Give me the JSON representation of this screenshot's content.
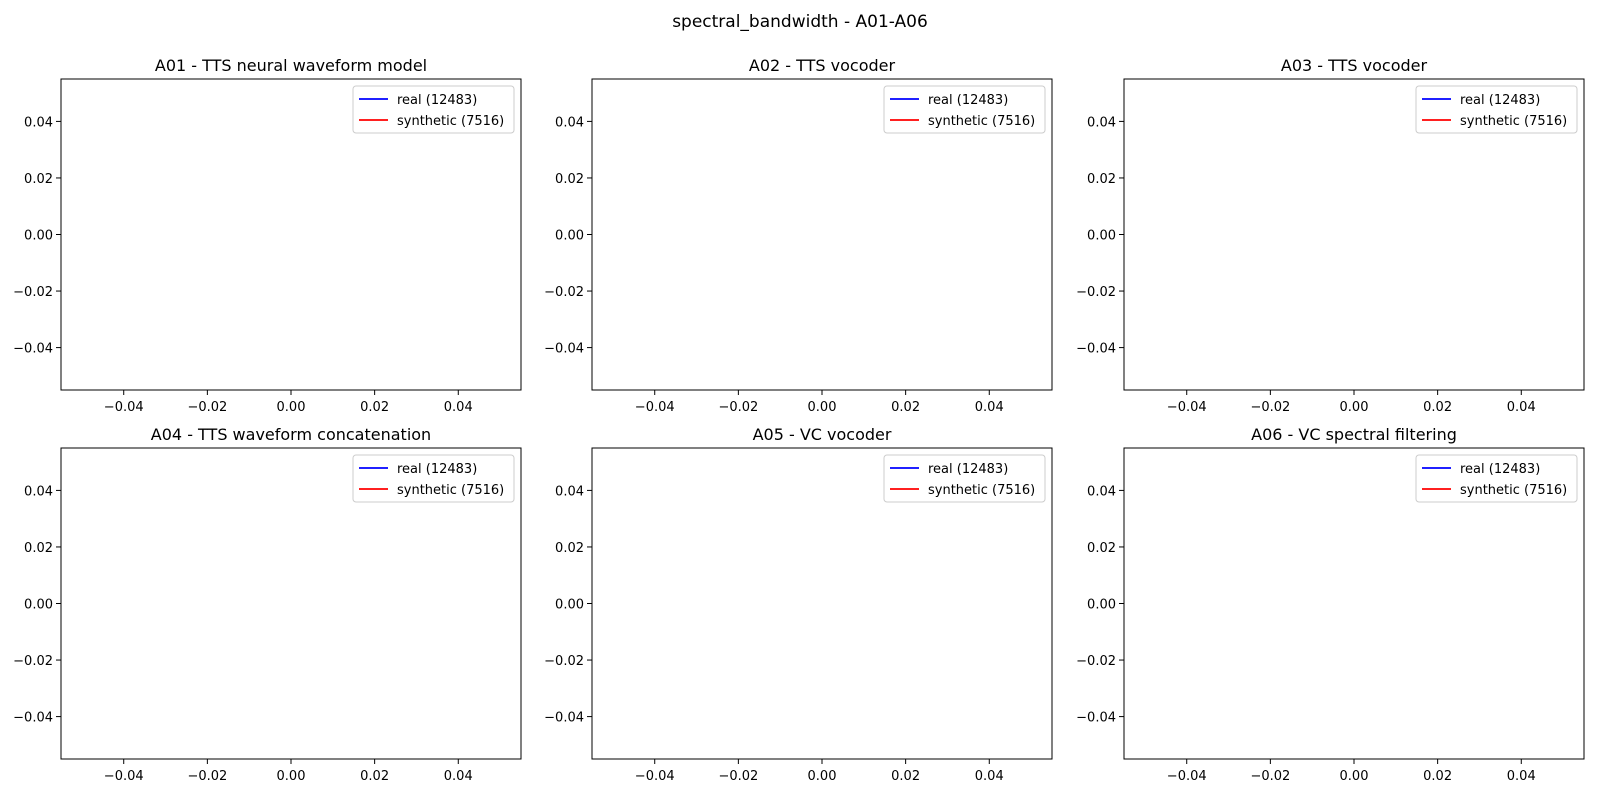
{
  "figure": {
    "suptitle": "spectral_bandwidth - A01-A06"
  },
  "colors": {
    "real": "#0000ff",
    "synthetic": "#ff0000",
    "axes": "#000000",
    "legend_border": "#cccccc"
  },
  "chart_data": [
    {
      "type": "line",
      "title": "A01 - TTS neural waveform model",
      "xlabel": "",
      "ylabel": "",
      "xlim": [
        -0.055,
        0.055
      ],
      "ylim": [
        -0.055,
        0.055
      ],
      "xticks": [
        -0.04,
        -0.02,
        0.0,
        0.02,
        0.04
      ],
      "yticks": [
        -0.04,
        -0.02,
        0.0,
        0.02,
        0.04
      ],
      "tick_labels": [
        "−0.04",
        "−0.02",
        "0.00",
        "0.02",
        "0.04"
      ],
      "grid": false,
      "legend_position": "upper right",
      "series": [
        {
          "name": "real (12483)",
          "color_key": "real",
          "values": []
        },
        {
          "name": "synthetic (7516)",
          "color_key": "synthetic",
          "values": []
        }
      ]
    },
    {
      "type": "line",
      "title": "A02 - TTS vocoder",
      "xlabel": "",
      "ylabel": "",
      "xlim": [
        -0.055,
        0.055
      ],
      "ylim": [
        -0.055,
        0.055
      ],
      "xticks": [
        -0.04,
        -0.02,
        0.0,
        0.02,
        0.04
      ],
      "yticks": [
        -0.04,
        -0.02,
        0.0,
        0.02,
        0.04
      ],
      "tick_labels": [
        "−0.04",
        "−0.02",
        "0.00",
        "0.02",
        "0.04"
      ],
      "grid": false,
      "legend_position": "upper right",
      "series": [
        {
          "name": "real (12483)",
          "color_key": "real",
          "values": []
        },
        {
          "name": "synthetic (7516)",
          "color_key": "synthetic",
          "values": []
        }
      ]
    },
    {
      "type": "line",
      "title": "A03 - TTS vocoder",
      "xlabel": "",
      "ylabel": "",
      "xlim": [
        -0.055,
        0.055
      ],
      "ylim": [
        -0.055,
        0.055
      ],
      "xticks": [
        -0.04,
        -0.02,
        0.0,
        0.02,
        0.04
      ],
      "yticks": [
        -0.04,
        -0.02,
        0.0,
        0.02,
        0.04
      ],
      "tick_labels": [
        "−0.04",
        "−0.02",
        "0.00",
        "0.02",
        "0.04"
      ],
      "grid": false,
      "legend_position": "upper right",
      "series": [
        {
          "name": "real (12483)",
          "color_key": "real",
          "values": []
        },
        {
          "name": "synthetic (7516)",
          "color_key": "synthetic",
          "values": []
        }
      ]
    },
    {
      "type": "line",
      "title": "A04 - TTS waveform concatenation",
      "xlabel": "",
      "ylabel": "",
      "xlim": [
        -0.055,
        0.055
      ],
      "ylim": [
        -0.055,
        0.055
      ],
      "xticks": [
        -0.04,
        -0.02,
        0.0,
        0.02,
        0.04
      ],
      "yticks": [
        -0.04,
        -0.02,
        0.0,
        0.02,
        0.04
      ],
      "tick_labels": [
        "−0.04",
        "−0.02",
        "0.00",
        "0.02",
        "0.04"
      ],
      "grid": false,
      "legend_position": "upper right",
      "series": [
        {
          "name": "real (12483)",
          "color_key": "real",
          "values": []
        },
        {
          "name": "synthetic (7516)",
          "color_key": "synthetic",
          "values": []
        }
      ]
    },
    {
      "type": "line",
      "title": "A05 - VC vocoder",
      "xlabel": "",
      "ylabel": "",
      "xlim": [
        -0.055,
        0.055
      ],
      "ylim": [
        -0.055,
        0.055
      ],
      "xticks": [
        -0.04,
        -0.02,
        0.0,
        0.02,
        0.04
      ],
      "yticks": [
        -0.04,
        -0.02,
        0.0,
        0.02,
        0.04
      ],
      "tick_labels": [
        "−0.04",
        "−0.02",
        "0.00",
        "0.02",
        "0.04"
      ],
      "grid": false,
      "legend_position": "upper right",
      "series": [
        {
          "name": "real (12483)",
          "color_key": "real",
          "values": []
        },
        {
          "name": "synthetic (7516)",
          "color_key": "synthetic",
          "values": []
        }
      ]
    },
    {
      "type": "line",
      "title": "A06 - VC spectral filtering",
      "xlabel": "",
      "ylabel": "",
      "xlim": [
        -0.055,
        0.055
      ],
      "ylim": [
        -0.055,
        0.055
      ],
      "xticks": [
        -0.04,
        -0.02,
        0.0,
        0.02,
        0.04
      ],
      "yticks": [
        -0.04,
        -0.02,
        0.0,
        0.02,
        0.04
      ],
      "tick_labels": [
        "−0.04",
        "−0.02",
        "0.00",
        "0.02",
        "0.04"
      ],
      "grid": false,
      "legend_position": "upper right",
      "series": [
        {
          "name": "real (12483)",
          "color_key": "real",
          "values": []
        },
        {
          "name": "synthetic (7516)",
          "color_key": "synthetic",
          "values": []
        }
      ]
    }
  ]
}
